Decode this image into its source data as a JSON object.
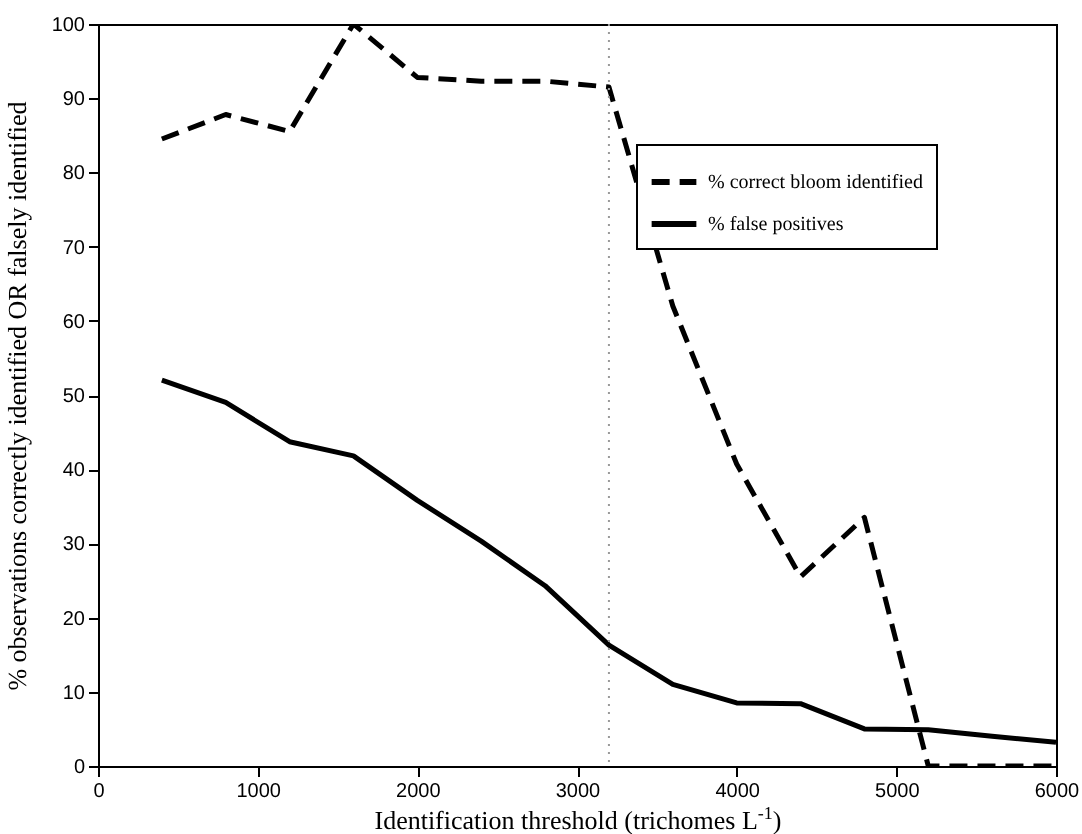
{
  "chart_data": {
    "type": "line",
    "xlabel": "Identification threshold (trichomes L$^{-1}$)",
    "ylabel": "% observations correctly identified OR falsely identified",
    "x": [
      400,
      800,
      1200,
      1600,
      2000,
      2400,
      2800,
      3200,
      3600,
      4000,
      4400,
      4800,
      5200,
      5600,
      6000
    ],
    "series": [
      {
        "name": "% correct bloom identified",
        "color": "#000000",
        "line_style": "dashed",
        "values": [
          84.5,
          87.8,
          85.5,
          100,
          92.8,
          92.3,
          92.3,
          91.5,
          62,
          40.7,
          25.5,
          33.5,
          0,
          0,
          0
        ]
      },
      {
        "name": "% false positives",
        "color": "#000000",
        "line_style": "solid",
        "values": [
          52,
          49,
          43.7,
          41.8,
          35.8,
          30.3,
          24.3,
          16.3,
          11,
          8.5,
          8.4,
          5,
          4.9,
          4,
          3.2
        ]
      }
    ],
    "xlim": [
      0,
      6000
    ],
    "xticks": [
      0,
      1000,
      2000,
      3000,
      4000,
      5000,
      6000
    ],
    "ylim": [
      0,
      100
    ],
    "yticks": [
      0,
      10,
      20,
      30,
      40,
      50,
      60,
      70,
      80,
      90,
      100
    ],
    "ref_lines": [
      {
        "axis": "x",
        "value": 3200,
        "color": "#999999",
        "line_style": "dotted"
      }
    ],
    "grid": false,
    "legend": "top right",
    "marker": "none"
  }
}
